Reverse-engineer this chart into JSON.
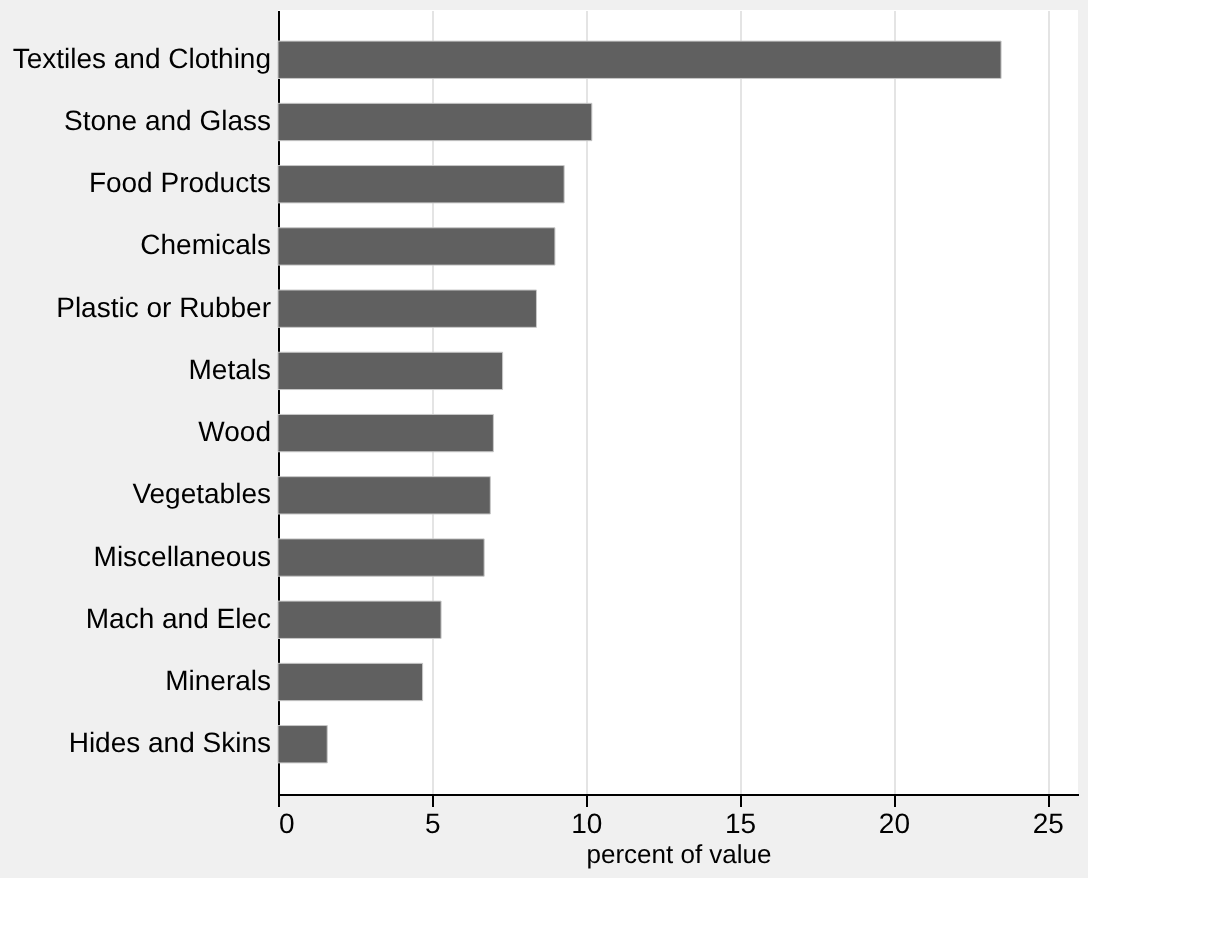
{
  "chart_data": {
    "type": "bar",
    "orientation": "horizontal",
    "xlabel": "percent of value",
    "categories": [
      "Textiles and Clothing",
      "Stone and Glass",
      "Food Products",
      "Chemicals",
      "Plastic or Rubber",
      "Metals",
      "Wood",
      "Vegetables",
      "Miscellaneous",
      "Mach and Elec",
      "Minerals",
      "Hides and Skins"
    ],
    "values": [
      23.5,
      10.2,
      9.3,
      9.0,
      8.4,
      7.3,
      7.0,
      6.9,
      6.7,
      5.3,
      4.7,
      1.6
    ],
    "color": "#606060",
    "xlim": [
      0,
      26
    ],
    "xticks": [
      0,
      5,
      10,
      15,
      20,
      25
    ],
    "grid": "x"
  }
}
